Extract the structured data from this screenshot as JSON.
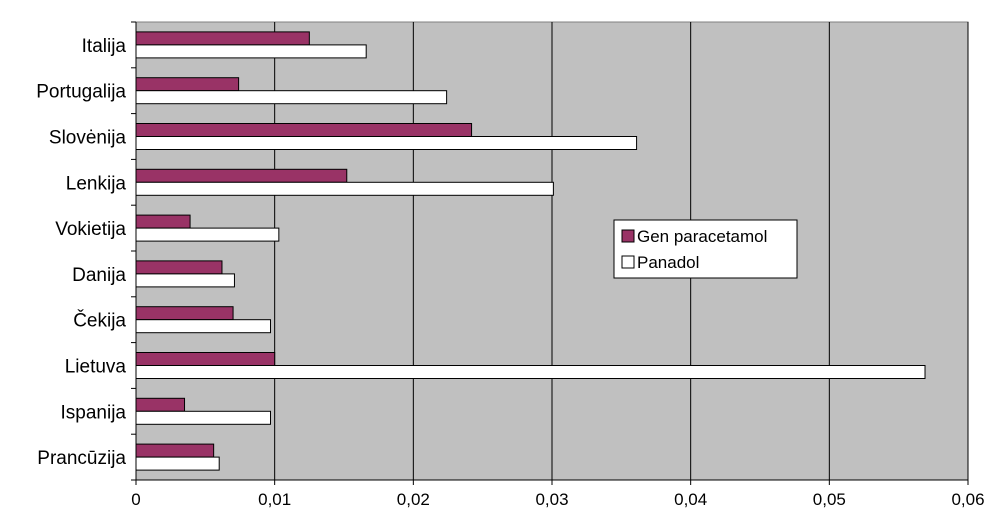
{
  "chart_data": {
    "type": "bar",
    "orientation": "horizontal",
    "categories": [
      "Italija",
      "Portugalija",
      "Slovėnija",
      "Lenkija",
      "Vokietija",
      "Danija",
      "Čekija",
      "Lietuva",
      "Ispanija",
      "Prancūzija"
    ],
    "series": [
      {
        "name": "Gen paracetamol",
        "color": "#993366",
        "values": [
          0.0125,
          0.0074,
          0.0242,
          0.0152,
          0.0039,
          0.0062,
          0.007,
          0.01,
          0.0035,
          0.0056
        ]
      },
      {
        "name": "Panadol",
        "color": "#ffffff",
        "values": [
          0.0166,
          0.0224,
          0.0361,
          0.0301,
          0.0103,
          0.0071,
          0.0097,
          0.0569,
          0.0097,
          0.006
        ]
      }
    ],
    "xlim": [
      0,
      0.06
    ],
    "x_ticks": [
      "0",
      "0,01",
      "0,02",
      "0,03",
      "0,04",
      "0,05",
      "0,06"
    ],
    "plot_background": "#c0c0c0",
    "grid": true,
    "legend_position": "right-center"
  }
}
